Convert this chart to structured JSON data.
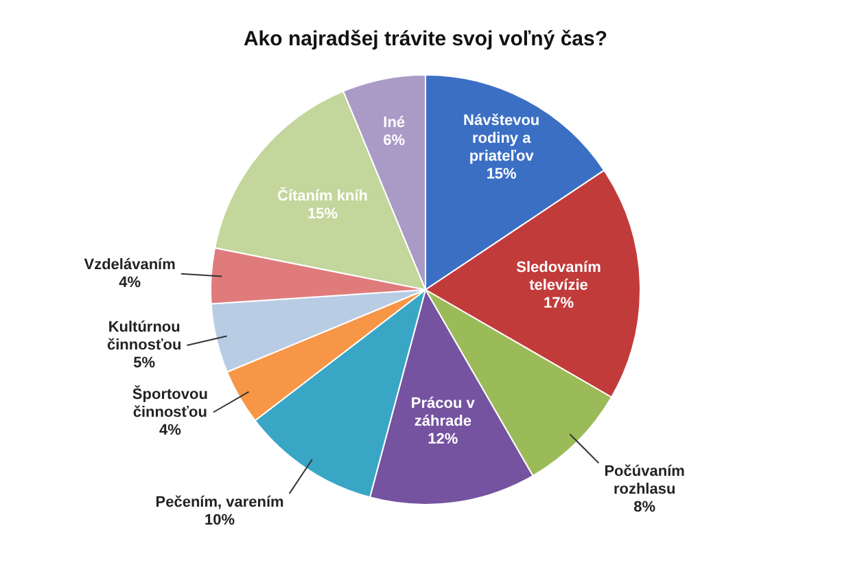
{
  "chart_data": {
    "type": "pie",
    "title": "Ako najradšej trávite svoj voľný čas?",
    "categories": [
      "Návštevou rodiny a priateľov",
      "Sledovaním televízie",
      "Počúvaním rozhlasu",
      "Prácou v záhrade",
      "Pečením, varením",
      "Športovou činnosťou",
      "Kultúrnou činnosťou",
      "Vzdelávaním",
      "Čítaním kníh",
      "Iné"
    ],
    "values": [
      15,
      17,
      8,
      12,
      10,
      4,
      5,
      4,
      15,
      6
    ],
    "colors": [
      "#3b6fc4",
      "#c23b3b",
      "#9bbb59",
      "#7553a0",
      "#3aa6c6",
      "#f79646",
      "#b8cce4",
      "#e07b7c",
      "#c3d69b",
      "#a99bc6"
    ],
    "value_labels": [
      "15%",
      "17%",
      "8%",
      "12%",
      "10%",
      "4%",
      "5%",
      "4%",
      "15%",
      "6%"
    ],
    "legend": false
  }
}
